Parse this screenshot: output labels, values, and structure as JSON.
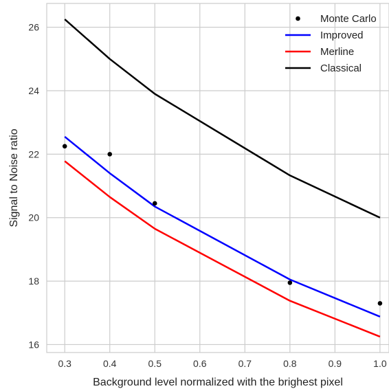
{
  "chart_data": {
    "type": "line",
    "title": "",
    "xlabel": "Background level normalized with the brighest pixel",
    "ylabel": "Signal to Noise ratio",
    "xlim": [
      0.26,
      1.02
    ],
    "ylim": [
      15.75,
      26.75
    ],
    "xticks": [
      0.3,
      0.4,
      0.5,
      0.6,
      0.7,
      0.8,
      0.9,
      1.0
    ],
    "xtick_labels": [
      "0.3",
      "0.4",
      "0.5",
      "0.6",
      "0.7",
      "0.8",
      "0.9",
      "1.0"
    ],
    "yticks": [
      16,
      18,
      20,
      22,
      24,
      26
    ],
    "ytick_labels": [
      "16",
      "18",
      "20",
      "22",
      "24",
      "26"
    ],
    "grid": true,
    "legend_position": "top-right",
    "series": [
      {
        "name": "Monte Carlo",
        "kind": "scatter",
        "color": "#000000",
        "x": [
          0.3,
          0.4,
          0.5,
          0.8,
          1.0
        ],
        "y": [
          22.25,
          22.0,
          20.45,
          17.95,
          17.3
        ]
      },
      {
        "name": "Improved",
        "kind": "line",
        "color": "#0000ff",
        "x": [
          0.3,
          0.4,
          0.5,
          0.8,
          1.0
        ],
        "y": [
          22.55,
          21.4,
          20.35,
          18.05,
          16.88
        ]
      },
      {
        "name": "Merline",
        "kind": "line",
        "color": "#ff0000",
        "x": [
          0.3,
          0.4,
          0.5,
          0.8,
          1.0
        ],
        "y": [
          21.78,
          20.65,
          19.65,
          17.38,
          16.25
        ]
      },
      {
        "name": "Classical",
        "kind": "line",
        "color": "#000000",
        "x": [
          0.3,
          0.4,
          0.5,
          0.8,
          1.0
        ],
        "y": [
          26.25,
          25.0,
          23.9,
          21.33,
          20.0
        ]
      }
    ]
  }
}
